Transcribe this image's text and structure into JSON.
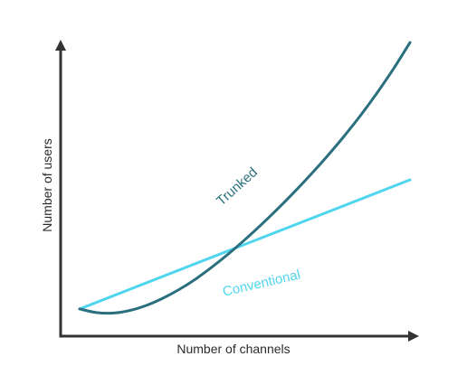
{
  "chart_data": {
    "type": "line",
    "title": "",
    "xlabel": "Number of channels",
    "ylabel": "Number of users",
    "xlim": [
      0,
      10
    ],
    "ylim": [
      0,
      10
    ],
    "grid": false,
    "axis_color": "#333333",
    "series": [
      {
        "name": "Trunked",
        "color": "#2a6f7d",
        "x": [
          0,
          0.5,
          1,
          1.5,
          2,
          2.5,
          3,
          3.5,
          4,
          4.5,
          5,
          5.5,
          6,
          6.5,
          7,
          7.5,
          8,
          8.5,
          9,
          9.5,
          10
        ],
        "y": [
          0.2,
          0.07,
          0.05,
          0.14,
          0.32,
          0.58,
          0.9,
          1.28,
          1.72,
          2.2,
          2.72,
          3.27,
          3.85,
          4.46,
          5.1,
          5.77,
          6.48,
          7.24,
          8.06,
          8.94,
          9.9
        ]
      },
      {
        "name": "Conventional",
        "color": "#4fd6ee",
        "x": [
          0,
          10
        ],
        "y": [
          0.2,
          4.9
        ]
      }
    ]
  }
}
